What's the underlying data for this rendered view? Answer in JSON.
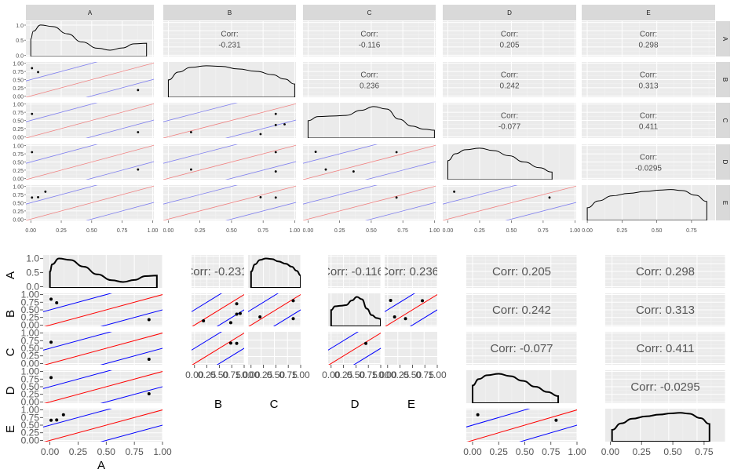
{
  "chart_data": [
    {
      "type": "scatter",
      "chart": "pairs-matrix",
      "variables": [
        "A",
        "B",
        "C",
        "D",
        "E"
      ],
      "strip_labels": {
        "top": [
          "A",
          "B",
          "C",
          "D",
          "E"
        ],
        "right": [
          "A",
          "B",
          "C",
          "D",
          "E"
        ]
      },
      "corr_prefix": "Corr:",
      "correlations": [
        {
          "row": "A",
          "col": "B",
          "value": "-0.231"
        },
        {
          "row": "A",
          "col": "C",
          "value": "-0.116"
        },
        {
          "row": "A",
          "col": "D",
          "value": "0.205"
        },
        {
          "row": "A",
          "col": "E",
          "value": "0.298"
        },
        {
          "row": "B",
          "col": "C",
          "value": "0.236"
        },
        {
          "row": "B",
          "col": "D",
          "value": "0.242"
        },
        {
          "row": "B",
          "col": "E",
          "value": "0.313"
        },
        {
          "row": "C",
          "col": "D",
          "value": "-0.077"
        },
        {
          "row": "C",
          "col": "E",
          "value": "0.411"
        },
        {
          "row": "D",
          "col": "E",
          "value": "-0.0295"
        }
      ],
      "observations": [
        {
          "A": 0.88,
          "B": 0.18,
          "C": 0.14,
          "D": 0.27
        },
        {
          "A": 0.01,
          "B": 0.85,
          "C": 0.7,
          "D": 0.8,
          "E": 0.66
        },
        {
          "A": 0.06,
          "B": 0.73,
          "E": 0.67
        },
        {
          "A": 0.12,
          "E": 0.84
        },
        {
          "B": 0.73,
          "C": 0.08
        },
        {
          "B": 0.85,
          "C": 0.36,
          "D": 0.21
        },
        {
          "B": 0.92,
          "C": 0.38
        },
        {
          "C": 0.06,
          "D": 0.81
        },
        {
          "D": 0.05,
          "E": 0.84
        }
      ],
      "densities": {
        "A": [
          [
            0.0,
            0.55
          ],
          [
            0.02,
            0.8
          ],
          [
            0.08,
            1.0
          ],
          [
            0.18,
            0.95
          ],
          [
            0.3,
            0.72
          ],
          [
            0.42,
            0.46
          ],
          [
            0.55,
            0.26
          ],
          [
            0.65,
            0.2
          ],
          [
            0.75,
            0.27
          ],
          [
            0.85,
            0.4
          ],
          [
            0.95,
            0.42
          ]
        ],
        "B": [
          [
            0.0,
            0.55
          ],
          [
            0.08,
            0.8
          ],
          [
            0.18,
            0.95
          ],
          [
            0.3,
            1.0
          ],
          [
            0.42,
            0.98
          ],
          [
            0.55,
            0.9
          ],
          [
            0.7,
            0.82
          ],
          [
            0.82,
            0.72
          ],
          [
            0.92,
            0.58
          ],
          [
            1.0,
            0.42
          ]
        ],
        "C": [
          [
            0.0,
            0.55
          ],
          [
            0.08,
            0.68
          ],
          [
            0.2,
            0.7
          ],
          [
            0.3,
            0.72
          ],
          [
            0.42,
            0.88
          ],
          [
            0.52,
            1.0
          ],
          [
            0.62,
            0.92
          ],
          [
            0.72,
            0.6
          ],
          [
            0.82,
            0.38
          ],
          [
            0.92,
            0.28
          ],
          [
            1.0,
            0.25
          ]
        ],
        "D": [
          [
            0.0,
            0.6
          ],
          [
            0.06,
            0.82
          ],
          [
            0.14,
            0.95
          ],
          [
            0.25,
            1.0
          ],
          [
            0.36,
            0.92
          ],
          [
            0.48,
            0.76
          ],
          [
            0.6,
            0.56
          ],
          [
            0.72,
            0.38
          ],
          [
            0.82,
            0.24
          ]
        ],
        "E": [
          [
            0.0,
            0.4
          ],
          [
            0.08,
            0.62
          ],
          [
            0.18,
            0.78
          ],
          [
            0.3,
            0.86
          ],
          [
            0.42,
            0.92
          ],
          [
            0.52,
            0.96
          ],
          [
            0.6,
            0.98
          ],
          [
            0.68,
            0.95
          ],
          [
            0.78,
            0.8
          ],
          [
            0.86,
            0.6
          ]
        ]
      },
      "axes": {
        "x_ticks": [
          "0.00",
          "0.25",
          "0.50",
          "0.75",
          "1.00"
        ],
        "x_ticks_E": [
          "0.00",
          "0.25",
          "0.50",
          "0.75"
        ],
        "y_ticks_A": [
          "0.0",
          "0.5",
          "1.0"
        ],
        "y_ticks": [
          "0.00",
          "0.25",
          "0.50",
          "0.75",
          "1.00"
        ],
        "xlim": [
          -0.04,
          1.01
        ],
        "xlim_E": [
          -0.04,
          0.92
        ],
        "ylim": [
          -0.04,
          1.04
        ],
        "grid": true
      },
      "reference_lines": {
        "red": {
          "intercept": 0.0
        },
        "blue": [
          {
            "intercept": 0.5
          },
          {
            "intercept": -0.5
          }
        ],
        "slope": 1
      },
      "colors": {
        "red": "#f08080",
        "blue": "#7f7fef",
        "panel": "#ebebeb",
        "strip": "#d9d9d9",
        "text": "#4d4d4d"
      }
    },
    {
      "type": "scatter",
      "chart": "pairs-matrix-detached",
      "corr_prefix": "Corr:",
      "bottom_labels": [
        "A",
        "B",
        "C",
        "D",
        "E"
      ],
      "left_labels": [
        "A",
        "B",
        "C",
        "D",
        "E"
      ],
      "x_ticks": [
        "0.00",
        "0.25",
        "0.50",
        "0.75",
        "1.00"
      ],
      "y_ticks_A": [
        "0.0",
        "0.5",
        "1.0"
      ],
      "y_ticks": [
        "0.00",
        "0.25",
        "0.50",
        "0.75",
        "1.00"
      ],
      "xlim": [
        -0.06,
        1.0
      ],
      "ylim": [
        -0.04,
        1.04
      ],
      "colors": {
        "red": "#ff0000",
        "blue": "#0000ff",
        "panel": "#ebebeb",
        "text": "#555555"
      }
    }
  ]
}
